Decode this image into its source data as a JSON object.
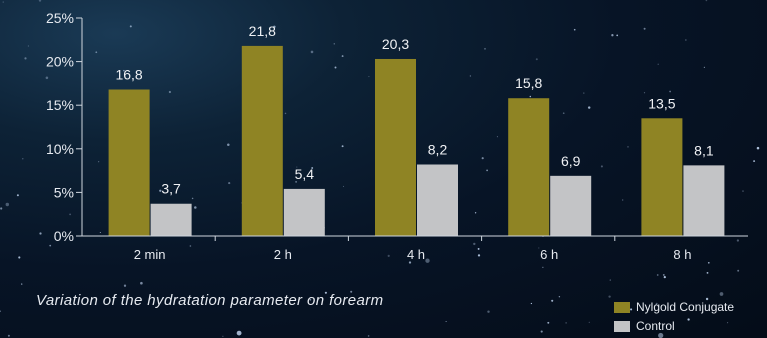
{
  "chart_data": {
    "type": "bar",
    "title": "",
    "caption": "Variation of the hydratation parameter on forearm",
    "categories": [
      "2 min",
      "2 h",
      "4 h",
      "6 h",
      "8 h"
    ],
    "series": [
      {
        "name": "Nylgold Conjugate",
        "values": [
          16.8,
          21.8,
          20.3,
          15.8,
          13.5
        ],
        "labels": [
          "16,8",
          "21,8",
          "20,3",
          "15,8",
          "13,5"
        ],
        "color": "#8f8424"
      },
      {
        "name": "Control",
        "values": [
          3.7,
          5.4,
          8.2,
          6.9,
          8.1
        ],
        "labels": [
          "3,7",
          "5,4",
          "8,2",
          "6,9",
          "8,1"
        ],
        "color": "#c3c4c6"
      }
    ],
    "yticks": [
      "0%",
      "5%",
      "10%",
      "15%",
      "20%",
      "25%"
    ],
    "ylim": [
      0,
      25
    ],
    "xlabel": "",
    "ylabel": "",
    "grid": false,
    "legend_position": "bottom-right"
  }
}
